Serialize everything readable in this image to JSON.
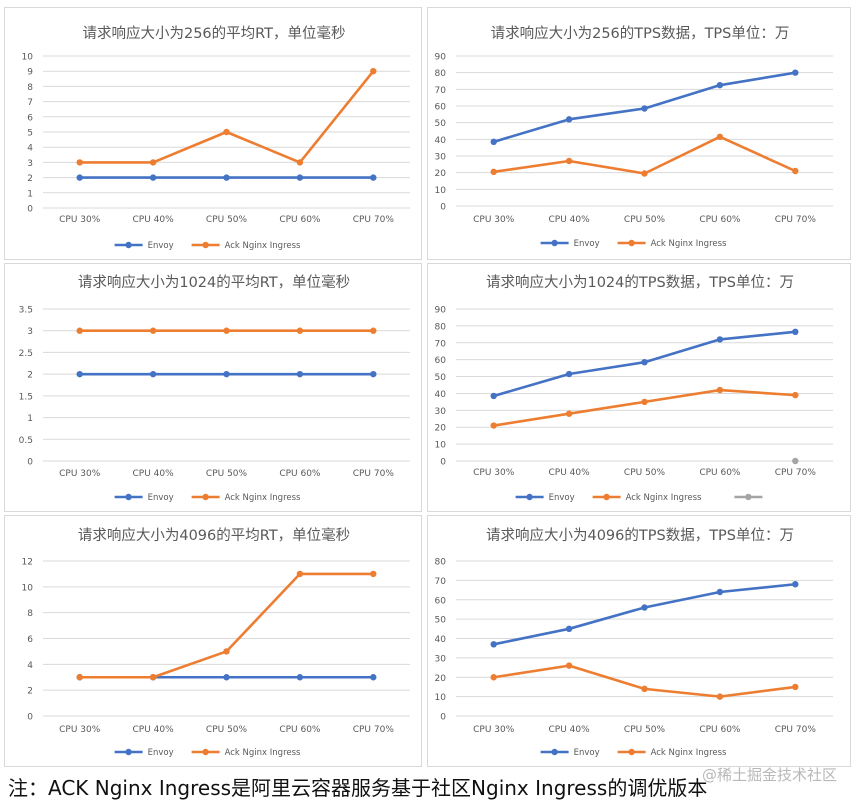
{
  "colors": {
    "envoy": "#4472c4",
    "ack": "#ed7d31",
    "extra": "#a5a5a5",
    "grid": "#d9d9d9",
    "text": "#595959"
  },
  "caption": "注：ACK Nginx Ingress是阿里云容器服务基于社区Nginx Ingress的调优版本",
  "watermark": "@稀土掘金技术社区",
  "chart_data": [
    {
      "type": "line",
      "title": "请求响应大小为256的平均RT，单位毫秒",
      "categories": [
        "CPU 30%",
        "CPU 40%",
        "CPU 50%",
        "CPU 60%",
        "CPU 70%"
      ],
      "ylim": [
        0,
        10
      ],
      "ystep": 1,
      "yticks": [
        "0",
        "1",
        "2",
        "3",
        "4",
        "5",
        "6",
        "7",
        "8",
        "9",
        "10"
      ],
      "series": [
        {
          "name": "Envoy",
          "values": [
            2,
            2,
            2,
            2,
            2
          ]
        },
        {
          "name": "Ack Nginx Ingress",
          "values": [
            3,
            3,
            5,
            3,
            9
          ]
        }
      ],
      "legend": "bottom",
      "grid": true
    },
    {
      "type": "line",
      "title": "请求响应大小为256的TPS数据，TPS单位：万",
      "categories": [
        "CPU 30%",
        "CPU 40%",
        "CPU 50%",
        "CPU 60%",
        "CPU 70%"
      ],
      "ylim": [
        0,
        90
      ],
      "ystep": 10,
      "yticks": [
        "0",
        "10",
        "20",
        "30",
        "40",
        "50",
        "60",
        "70",
        "80",
        "90"
      ],
      "series": [
        {
          "name": "Envoy",
          "values": [
            38.5,
            52,
            58.5,
            72.5,
            80
          ]
        },
        {
          "name": "Ack Nginx Ingress",
          "values": [
            20.5,
            27,
            19.5,
            41.5,
            21
          ]
        }
      ],
      "legend": "bottom",
      "grid": true
    },
    {
      "type": "line",
      "title": "请求响应大小为1024的平均RT，单位毫秒",
      "categories": [
        "CPU 30%",
        "CPU 40%",
        "CPU 50%",
        "CPU 60%",
        "CPU 70%"
      ],
      "ylim": [
        0,
        3.5
      ],
      "ystep": 0.5,
      "yticks": [
        "0",
        "0.5",
        "1",
        "1.5",
        "2",
        "2.5",
        "3",
        "3.5"
      ],
      "series": [
        {
          "name": "Envoy",
          "values": [
            2,
            2,
            2,
            2,
            2
          ]
        },
        {
          "name": "Ack Nginx Ingress",
          "values": [
            3,
            3,
            3,
            3,
            3
          ]
        }
      ],
      "legend": "bottom",
      "grid": true
    },
    {
      "type": "line",
      "title": "请求响应大小为1024的TPS数据，TPS单位：万",
      "categories": [
        "CPU 30%",
        "CPU 40%",
        "CPU 50%",
        "CPU 60%",
        "CPU 70%"
      ],
      "ylim": [
        0,
        90
      ],
      "ystep": 10,
      "yticks": [
        "0",
        "10",
        "20",
        "30",
        "40",
        "50",
        "60",
        "70",
        "80",
        "90"
      ],
      "series": [
        {
          "name": "Envoy",
          "values": [
            38.5,
            51.5,
            58.5,
            72,
            76.5
          ]
        },
        {
          "name": "Ack Nginx Ingress",
          "values": [
            21,
            28,
            35,
            42,
            39
          ]
        },
        {
          "values": [
            null,
            null,
            null,
            null,
            0
          ]
        }
      ],
      "legend": "bottom",
      "grid": true
    },
    {
      "type": "line",
      "title": "请求响应大小为4096的平均RT，单位毫秒",
      "categories": [
        "CPU 30%",
        "CPU 40%",
        "CPU 50%",
        "CPU 60%",
        "CPU 70%"
      ],
      "ylim": [
        0,
        12
      ],
      "ystep": 2,
      "yticks": [
        "0",
        "2",
        "4",
        "6",
        "8",
        "10",
        "12"
      ],
      "series": [
        {
          "name": "Envoy",
          "values": [
            3,
            3,
            3,
            3,
            3
          ]
        },
        {
          "name": "Ack Nginx Ingress",
          "values": [
            3,
            3,
            5,
            11,
            11
          ]
        }
      ],
      "legend": "bottom",
      "grid": true
    },
    {
      "type": "line",
      "title": "请求响应大小为4096的TPS数据，TPS单位：万",
      "categories": [
        "CPU 30%",
        "CPU 40%",
        "CPU 50%",
        "CPU 60%",
        "CPU 70%"
      ],
      "ylim": [
        0,
        80
      ],
      "ystep": 10,
      "yticks": [
        "0",
        "10",
        "20",
        "30",
        "40",
        "50",
        "60",
        "70",
        "80"
      ],
      "series": [
        {
          "name": "Envoy",
          "values": [
            37,
            45,
            56,
            64,
            68
          ]
        },
        {
          "name": "Ack Nginx Ingress",
          "values": [
            20,
            26,
            14,
            10,
            15
          ]
        }
      ],
      "legend": "bottom",
      "grid": true
    }
  ]
}
